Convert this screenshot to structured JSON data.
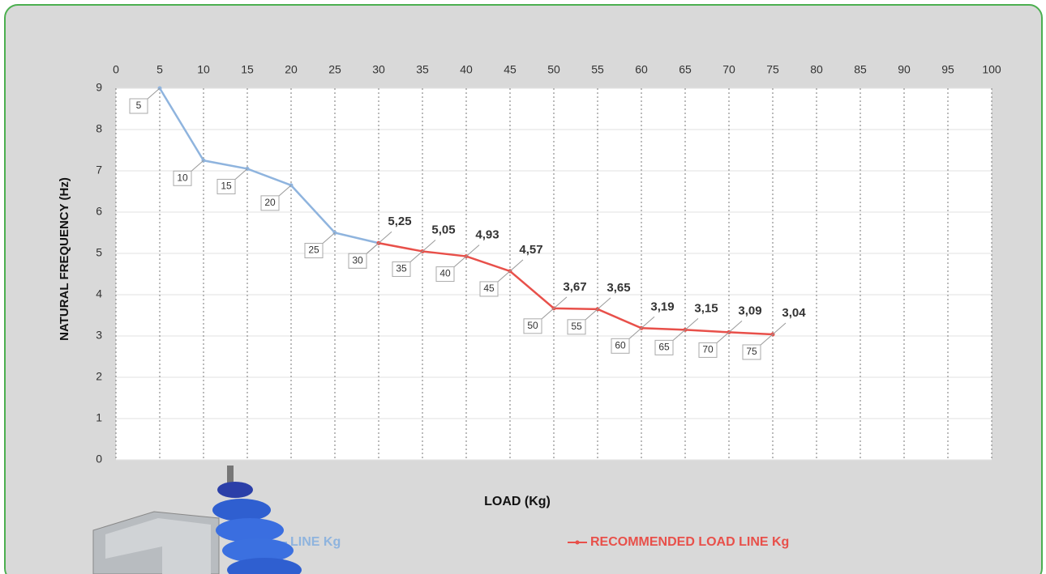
{
  "chart_data": {
    "type": "line",
    "y_label": "NATURAL FREQUENCY (Hz)",
    "x_label": "LOAD (Kg)",
    "xlim": [
      0,
      100
    ],
    "xticks": [
      0,
      5,
      10,
      15,
      20,
      25,
      30,
      35,
      40,
      45,
      50,
      55,
      60,
      65,
      70,
      75,
      80,
      85,
      90,
      95,
      100
    ],
    "ylim": [
      0,
      9
    ],
    "yticks": [
      0,
      1,
      2,
      3,
      4,
      5,
      6,
      7,
      8,
      9
    ],
    "grid": true,
    "series": [
      {
        "name": "LINE Kg",
        "color": "#8fb4de",
        "x": [
          5,
          10,
          15,
          20,
          25,
          30
        ],
        "values": [
          9,
          7.25,
          7.05,
          6.65,
          5.5,
          5.25
        ]
      },
      {
        "name": "RECOMMENDED LOAD LINE Kg",
        "color": "#e8504a",
        "x": [
          30,
          35,
          40,
          45,
          50,
          55,
          60,
          65,
          70,
          75
        ],
        "values": [
          5.25,
          5.05,
          4.93,
          4.57,
          3.67,
          3.65,
          3.19,
          3.15,
          3.09,
          3.04
        ],
        "value_labels": [
          "5,25",
          "5,05",
          "4,93",
          "4,57",
          "3,67",
          "3,65",
          "3,19",
          "3,15",
          "3,09",
          "3,04"
        ]
      }
    ]
  }
}
